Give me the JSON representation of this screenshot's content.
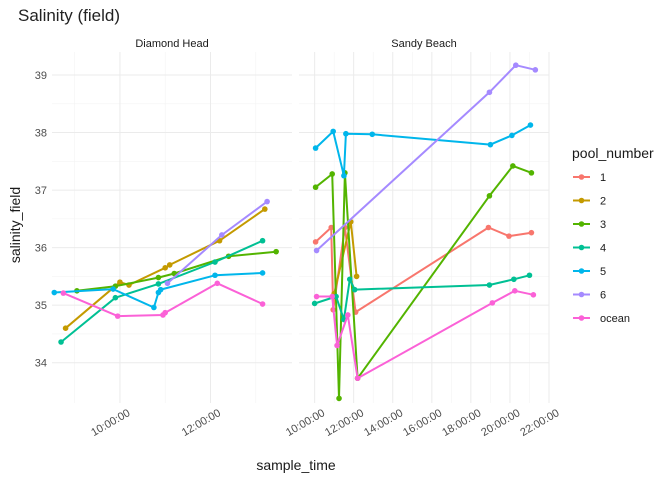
{
  "chart_data": {
    "type": "line",
    "title": "Salinity (field)",
    "xlabel": "sample_time",
    "ylabel": "salinity_field",
    "ylim": [
      33.3,
      39.4
    ],
    "y_ticks": [
      34,
      35,
      36,
      37,
      38,
      39
    ],
    "grid": true,
    "legend": {
      "title": "pool_number",
      "position": "right"
    },
    "series_colors": {
      "1": "#F8766D",
      "2": "#C49A00",
      "3": "#53B400",
      "4": "#00C094",
      "5": "#00B6EB",
      "6": "#A58AFF",
      "ocean": "#FB61D7"
    },
    "panels": [
      {
        "name": "Diamond Head",
        "x_range_hours": [
          8.5,
          13.8
        ],
        "x_ticks": [
          "10:00:00",
          "12:00:00"
        ],
        "x_tick_hours": [
          10,
          12
        ],
        "series": [
          {
            "name": "2",
            "x": [
              8.8,
              10.0,
              10.2,
              11.0,
              11.1,
              12.2,
              13.2
            ],
            "y": [
              34.6,
              35.4,
              35.35,
              35.65,
              35.7,
              36.12,
              36.67
            ]
          },
          {
            "name": "3",
            "x": [
              9.05,
              9.9,
              10.85,
              11.2,
              12.4,
              13.45
            ],
            "y": [
              35.25,
              35.33,
              35.48,
              35.55,
              35.85,
              35.93
            ]
          },
          {
            "name": "4",
            "x": [
              8.7,
              9.9,
              10.85,
              12.1,
              13.15
            ],
            "y": [
              34.36,
              35.13,
              35.37,
              35.75,
              36.12
            ]
          },
          {
            "name": "5",
            "x": [
              8.55,
              9.85,
              10.75,
              10.85,
              10.9,
              12.1,
              13.15
            ],
            "y": [
              35.22,
              35.28,
              34.96,
              35.22,
              35.27,
              35.52,
              35.56
            ]
          },
          {
            "name": "6",
            "x": [
              11.05,
              12.25,
              13.25
            ],
            "y": [
              35.38,
              36.22,
              36.8
            ]
          },
          {
            "name": "ocean",
            "x": [
              8.75,
              9.95,
              10.95,
              11.0,
              12.15,
              13.15
            ],
            "y": [
              35.21,
              34.81,
              34.83,
              34.87,
              35.38,
              35.02
            ]
          }
        ]
      },
      {
        "name": "Sandy Beach",
        "x_range_hours": [
          9.2,
          22.0
        ],
        "x_ticks": [
          "10:00:00",
          "12:00:00",
          "14:00:00",
          "16:00:00",
          "18:00:00",
          "20:00:00",
          "22:00:00"
        ],
        "x_tick_hours": [
          10,
          12,
          14,
          16,
          18,
          20,
          22
        ],
        "series": [
          {
            "name": "1",
            "x": [
              10.05,
              10.85,
              10.95,
              11.55,
              12.1,
              18.9,
              19.95,
              21.1
            ],
            "y": [
              36.1,
              36.35,
              34.92,
              36.35,
              34.88,
              36.35,
              36.2,
              36.26
            ]
          },
          {
            "name": "2",
            "x": [
              11.0,
              11.85,
              12.15
            ],
            "y": [
              35.2,
              36.45,
              35.5
            ]
          },
          {
            "name": "3",
            "x": [
              10.05,
              10.9,
              11.25,
              11.55,
              12.2,
              18.95,
              20.15,
              21.1
            ],
            "y": [
              37.05,
              37.28,
              33.38,
              37.3,
              33.73,
              36.9,
              37.42,
              37.3
            ]
          },
          {
            "name": "4",
            "x": [
              10.0,
              11.1,
              11.5,
              11.8,
              12.05,
              18.95,
              20.2,
              21.0
            ],
            "y": [
              35.03,
              35.15,
              34.75,
              35.45,
              35.27,
              35.35,
              35.45,
              35.52
            ]
          },
          {
            "name": "5",
            "x": [
              10.05,
              10.95,
              11.5,
              11.6,
              12.95,
              19.0,
              20.1,
              21.05
            ],
            "y": [
              37.73,
              38.02,
              37.25,
              37.98,
              37.97,
              37.79,
              37.95,
              38.13
            ]
          },
          {
            "name": "6",
            "x": [
              10.1,
              18.95,
              20.3,
              21.3
            ],
            "y": [
              35.95,
              38.7,
              39.17,
              39.09
            ]
          },
          {
            "name": "ocean",
            "x": [
              10.1,
              10.9,
              11.15,
              11.7,
              12.2,
              19.1,
              20.25,
              21.2
            ],
            "y": [
              35.15,
              35.15,
              34.3,
              34.83,
              33.73,
              35.04,
              35.25,
              35.18
            ]
          }
        ]
      }
    ]
  }
}
